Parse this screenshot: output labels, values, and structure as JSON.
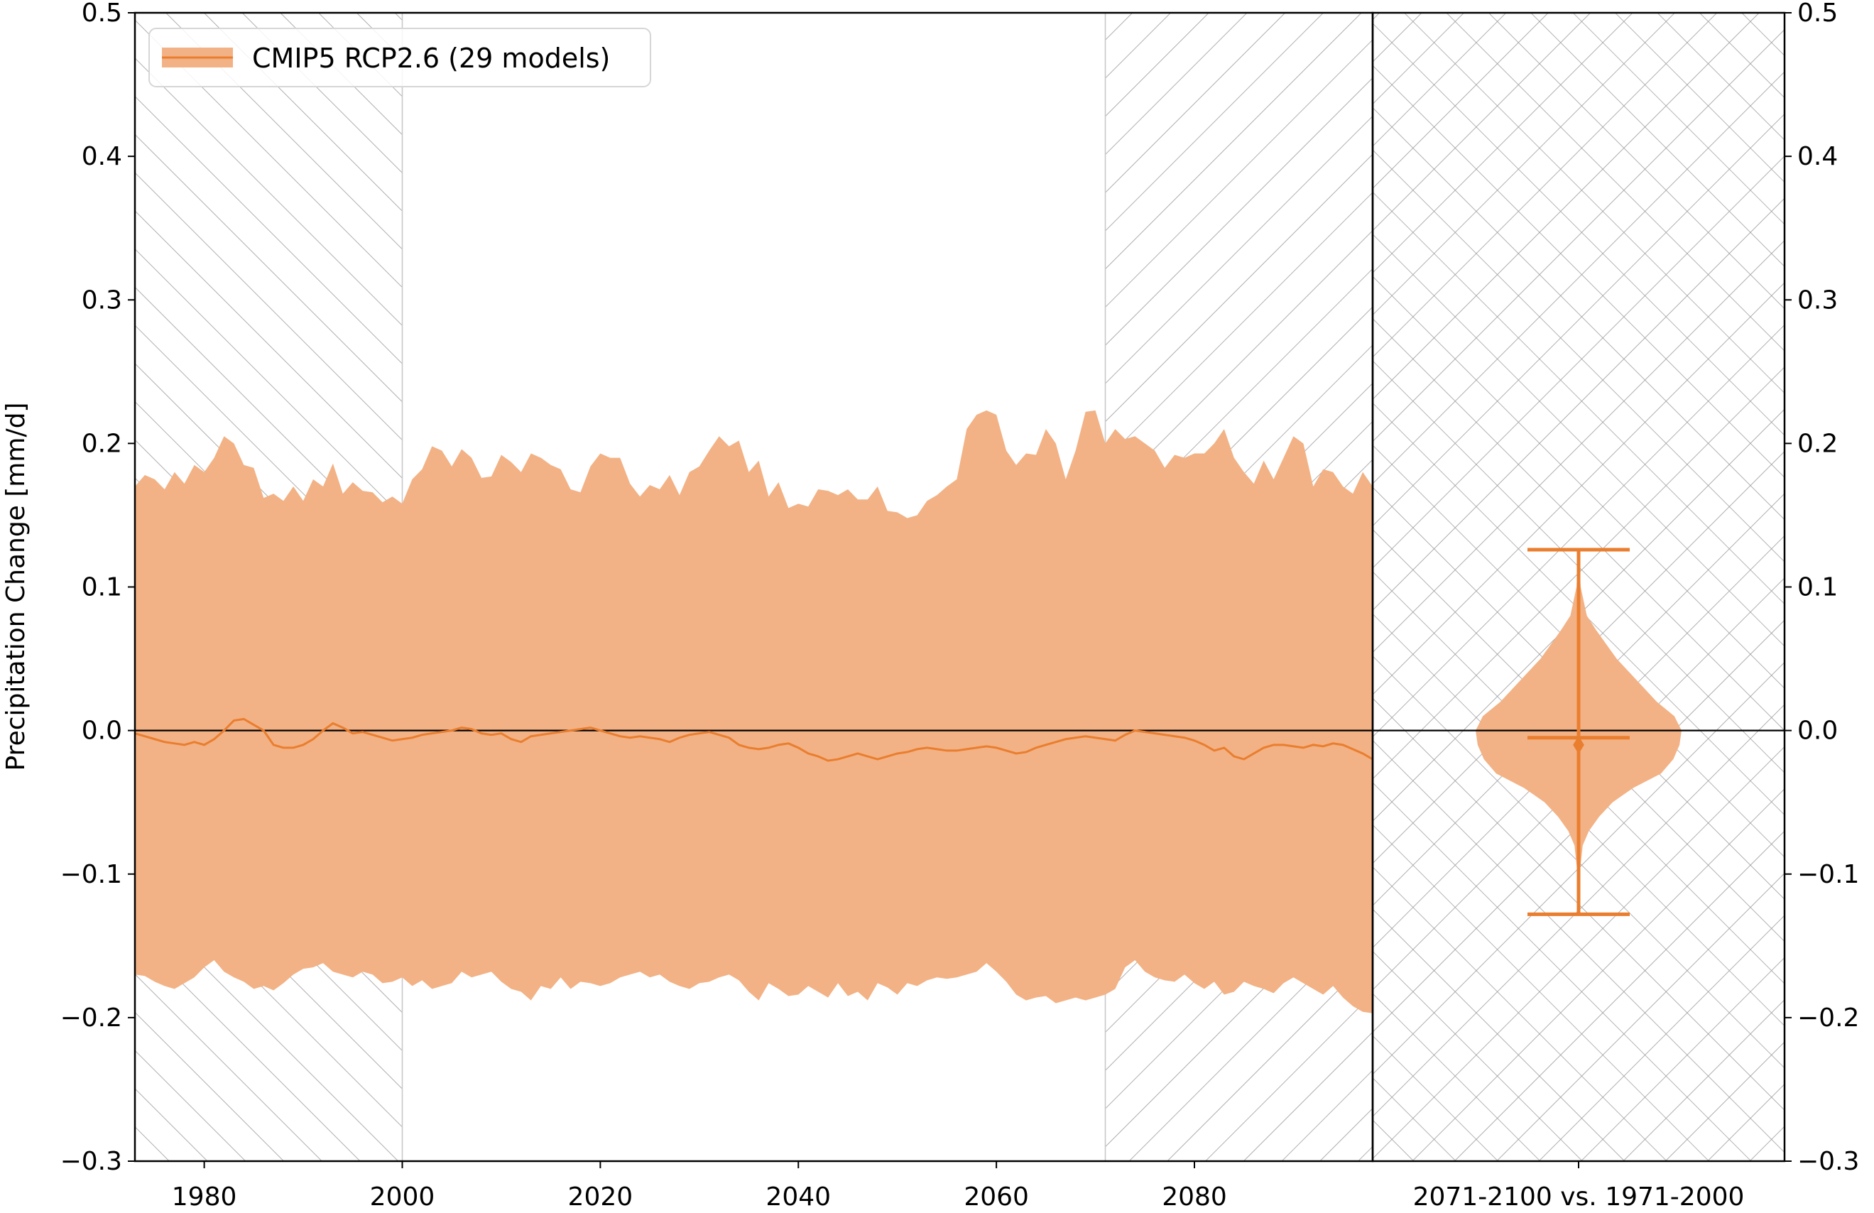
{
  "colors": {
    "band": "#f2b285",
    "line": "#ea7e2f",
    "zero_line": "#000000",
    "hatch": "#999999",
    "grid_divider": "#c8c8c8"
  },
  "chart_data": {
    "type": "area",
    "ylabel": "Precipitation Change [mm/d]",
    "ylim": [
      -0.3,
      0.5
    ],
    "yticks": [
      "0.5",
      "0.4",
      "0.3",
      "0.2",
      "0.1",
      "0.0",
      "−0.1",
      "−0.2",
      "−0.3"
    ],
    "ytick_values": [
      0.5,
      0.4,
      0.3,
      0.2,
      0.1,
      0.0,
      -0.1,
      -0.2,
      -0.3
    ],
    "xlim": [
      1973,
      2098
    ],
    "xticks": [
      "1980",
      "2000",
      "2020",
      "2040",
      "2060",
      "2080"
    ],
    "xtick_values": [
      1980,
      2000,
      2020,
      2040,
      2060,
      2080
    ],
    "legend": {
      "label": "CMIP5 RCP2.6 (29 models)",
      "placement": "upper-left"
    },
    "hatched_periods": [
      [
        1973,
        2000
      ],
      [
        2071,
        2098
      ]
    ],
    "series": [
      {
        "name": "CMIP5 RCP2.6 (29 models)",
        "x_start": 1973,
        "upper": [
          0.17,
          0.178,
          0.175,
          0.168,
          0.18,
          0.172,
          0.185,
          0.18,
          0.19,
          0.205,
          0.2,
          0.185,
          0.183,
          0.162,
          0.165,
          0.16,
          0.17,
          0.16,
          0.175,
          0.17,
          0.186,
          0.165,
          0.173,
          0.167,
          0.166,
          0.159,
          0.163,
          0.158,
          0.175,
          0.182,
          0.198,
          0.195,
          0.184,
          0.196,
          0.19,
          0.176,
          0.177,
          0.192,
          0.187,
          0.18,
          0.193,
          0.19,
          0.185,
          0.182,
          0.168,
          0.166,
          0.184,
          0.193,
          0.19,
          0.19,
          0.172,
          0.163,
          0.171,
          0.168,
          0.178,
          0.164,
          0.18,
          0.184,
          0.195,
          0.205,
          0.198,
          0.202,
          0.18,
          0.188,
          0.163,
          0.173,
          0.155,
          0.158,
          0.156,
          0.168,
          0.167,
          0.164,
          0.168,
          0.161,
          0.161,
          0.17,
          0.153,
          0.152,
          0.148,
          0.15,
          0.16,
          0.164,
          0.17,
          0.175,
          0.21,
          0.22,
          0.223,
          0.22,
          0.195,
          0.185,
          0.193,
          0.192,
          0.21,
          0.2,
          0.175,
          0.195,
          0.222,
          0.223,
          0.2,
          0.21,
          0.203,
          0.205,
          0.2,
          0.195,
          0.183,
          0.192,
          0.19,
          0.193,
          0.193,
          0.2,
          0.21,
          0.19,
          0.18,
          0.172,
          0.188,
          0.175,
          0.19,
          0.205,
          0.2,
          0.17,
          0.182,
          0.18,
          0.17,
          0.165,
          0.18,
          0.17
        ],
        "mean": [
          -0.002,
          -0.004,
          -0.006,
          -0.008,
          -0.009,
          -0.01,
          -0.008,
          -0.01,
          -0.006,
          0.0,
          0.007,
          0.008,
          0.004,
          0.0,
          -0.01,
          -0.012,
          -0.012,
          -0.01,
          -0.006,
          0.0,
          0.005,
          0.002,
          -0.002,
          -0.001,
          -0.003,
          -0.005,
          -0.007,
          -0.006,
          -0.005,
          -0.003,
          -0.002,
          -0.001,
          0.0,
          0.002,
          0.001,
          -0.002,
          -0.003,
          -0.002,
          -0.006,
          -0.008,
          -0.004,
          -0.003,
          -0.002,
          -0.001,
          0.0,
          0.001,
          0.002,
          0.0,
          -0.002,
          -0.004,
          -0.005,
          -0.004,
          -0.005,
          -0.006,
          -0.008,
          -0.005,
          -0.003,
          -0.002,
          -0.001,
          -0.003,
          -0.005,
          -0.01,
          -0.012,
          -0.013,
          -0.012,
          -0.01,
          -0.009,
          -0.012,
          -0.016,
          -0.018,
          -0.021,
          -0.02,
          -0.018,
          -0.016,
          -0.018,
          -0.02,
          -0.018,
          -0.016,
          -0.015,
          -0.013,
          -0.012,
          -0.013,
          -0.014,
          -0.014,
          -0.013,
          -0.012,
          -0.011,
          -0.012,
          -0.014,
          -0.016,
          -0.015,
          -0.012,
          -0.01,
          -0.008,
          -0.006,
          -0.005,
          -0.004,
          -0.005,
          -0.006,
          -0.007,
          -0.003,
          0.0,
          -0.001,
          -0.002,
          -0.003,
          -0.004,
          -0.005,
          -0.007,
          -0.01,
          -0.014,
          -0.012,
          -0.018,
          -0.02,
          -0.016,
          -0.012,
          -0.01,
          -0.01,
          -0.011,
          -0.012,
          -0.01,
          -0.011,
          -0.009,
          -0.01,
          -0.013,
          -0.016,
          -0.02
        ],
        "lower": [
          -0.17,
          -0.171,
          -0.175,
          -0.178,
          -0.18,
          -0.176,
          -0.172,
          -0.165,
          -0.16,
          -0.168,
          -0.172,
          -0.175,
          -0.18,
          -0.178,
          -0.181,
          -0.176,
          -0.17,
          -0.166,
          -0.165,
          -0.162,
          -0.168,
          -0.17,
          -0.172,
          -0.168,
          -0.17,
          -0.176,
          -0.175,
          -0.172,
          -0.178,
          -0.174,
          -0.18,
          -0.178,
          -0.176,
          -0.168,
          -0.172,
          -0.17,
          -0.168,
          -0.175,
          -0.18,
          -0.182,
          -0.188,
          -0.178,
          -0.18,
          -0.172,
          -0.18,
          -0.175,
          -0.176,
          -0.178,
          -0.176,
          -0.172,
          -0.17,
          -0.168,
          -0.172,
          -0.17,
          -0.175,
          -0.178,
          -0.18,
          -0.176,
          -0.175,
          -0.172,
          -0.17,
          -0.174,
          -0.182,
          -0.188,
          -0.176,
          -0.18,
          -0.185,
          -0.184,
          -0.178,
          -0.182,
          -0.186,
          -0.176,
          -0.185,
          -0.182,
          -0.188,
          -0.176,
          -0.179,
          -0.184,
          -0.176,
          -0.178,
          -0.174,
          -0.172,
          -0.173,
          -0.172,
          -0.17,
          -0.168,
          -0.162,
          -0.168,
          -0.175,
          -0.184,
          -0.188,
          -0.186,
          -0.185,
          -0.19,
          -0.188,
          -0.186,
          -0.188,
          -0.186,
          -0.184,
          -0.18,
          -0.165,
          -0.16,
          -0.168,
          -0.172,
          -0.174,
          -0.175,
          -0.17,
          -0.176,
          -0.18,
          -0.175,
          -0.184,
          -0.182,
          -0.175,
          -0.178,
          -0.18,
          -0.183,
          -0.176,
          -0.172,
          -0.176,
          -0.18,
          -0.184,
          -0.178,
          -0.186,
          -0.192,
          -0.196,
          -0.197
        ]
      }
    ],
    "violin": {
      "label": "2071-2100 vs. 1971-2000",
      "max": 0.126,
      "min": -0.128,
      "median": -0.005,
      "mean": -0.01,
      "kde_y": [
        -0.128,
        -0.1,
        -0.08,
        -0.07,
        -0.06,
        -0.05,
        -0.04,
        -0.03,
        -0.02,
        -0.01,
        0.0,
        0.01,
        0.02,
        0.03,
        0.04,
        0.05,
        0.06,
        0.07,
        0.08,
        0.1,
        0.126
      ],
      "kde_width": [
        0.0,
        0.01,
        0.04,
        0.1,
        0.2,
        0.33,
        0.53,
        0.8,
        0.92,
        0.98,
        1.0,
        0.93,
        0.76,
        0.63,
        0.5,
        0.37,
        0.27,
        0.17,
        0.08,
        0.02,
        0.0
      ]
    }
  }
}
